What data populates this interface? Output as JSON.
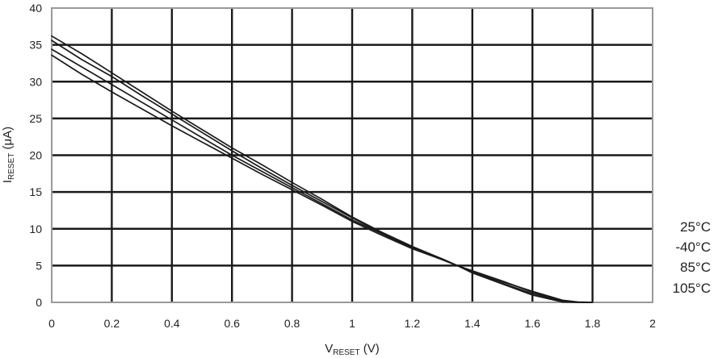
{
  "chart_data": {
    "type": "line",
    "xlabel_main": "V",
    "xlabel_sub": "RESET",
    "xlabel_unit": " (V)",
    "ylabel_main": "I",
    "ylabel_sub": "RESET",
    "ylabel_unit": " (μA)",
    "xlim": [
      0,
      2
    ],
    "ylim": [
      0,
      40
    ],
    "x_ticks": [
      "0",
      "0.2",
      "0.4",
      "0.6",
      "0.8",
      "1",
      "1.2",
      "1.4",
      "1.6",
      "1.8",
      "2"
    ],
    "y_ticks": [
      "0",
      "5",
      "10",
      "15",
      "20",
      "25",
      "30",
      "35",
      "40"
    ],
    "grid": true,
    "legend_labels": [
      "25°C",
      "-40°C",
      "85°C",
      "105°C"
    ],
    "series": [
      {
        "x": [
          0,
          0.1,
          0.2,
          0.3,
          0.4,
          0.5,
          0.6,
          0.7,
          0.8,
          0.9,
          1.0,
          1.1,
          1.2,
          1.3,
          1.35,
          1.4,
          1.5,
          1.6,
          1.7,
          1.75,
          1.8
        ],
        "y": [
          36.2,
          33.8,
          31.2,
          28.6,
          26.0,
          23.5,
          21.0,
          18.7,
          16.3,
          14.0,
          11.6,
          9.5,
          7.6,
          5.9,
          5.0,
          4.2,
          2.8,
          1.5,
          0.3,
          0.05,
          0
        ]
      },
      {
        "x": [
          0,
          0.1,
          0.2,
          0.3,
          0.4,
          0.5,
          0.6,
          0.7,
          0.8,
          0.9,
          1.0,
          1.1,
          1.2,
          1.3,
          1.35,
          1.4,
          1.5,
          1.6,
          1.7,
          1.75,
          1.8
        ],
        "y": [
          35.6,
          33.0,
          30.7,
          28.1,
          25.6,
          23.1,
          20.6,
          18.2,
          15.9,
          13.7,
          11.5,
          9.4,
          7.5,
          5.9,
          5.0,
          4.3,
          2.9,
          1.4,
          0.2,
          0.02,
          0
        ]
      },
      {
        "x": [
          0,
          0.1,
          0.2,
          0.3,
          0.4,
          0.5,
          0.6,
          0.7,
          0.8,
          0.9,
          1.0,
          1.1,
          1.2,
          1.3,
          1.35,
          1.4,
          1.5,
          1.6,
          1.7,
          1.75,
          1.8
        ],
        "y": [
          34.4,
          32.0,
          29.6,
          27.2,
          24.8,
          22.4,
          20.0,
          17.8,
          15.6,
          13.4,
          11.2,
          9.3,
          7.4,
          5.8,
          5.0,
          4.1,
          2.6,
          1.2,
          0.1,
          0.01,
          0
        ]
      },
      {
        "x": [
          0,
          0.1,
          0.2,
          0.3,
          0.4,
          0.5,
          0.6,
          0.7,
          0.8,
          0.9,
          1.0,
          1.1,
          1.2,
          1.3,
          1.35,
          1.4,
          1.5,
          1.6,
          1.7,
          1.75,
          1.8
        ],
        "y": [
          33.6,
          31.0,
          28.6,
          26.3,
          24.0,
          21.8,
          19.6,
          17.4,
          15.3,
          13.2,
          11.0,
          9.1,
          7.3,
          5.8,
          5.0,
          4.0,
          2.5,
          1.0,
          0.05,
          0,
          0
        ]
      }
    ]
  }
}
